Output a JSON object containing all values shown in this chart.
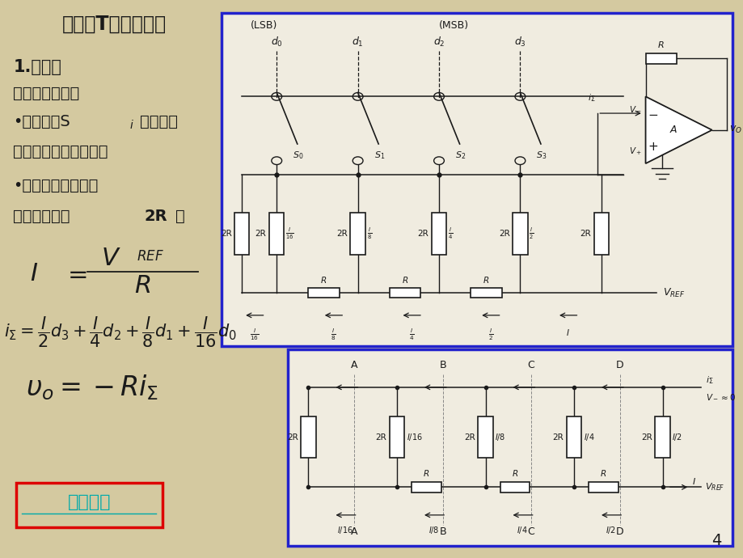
{
  "bg_color": "#d4c9a0",
  "circuit_bg": "#f0ece0",
  "title_text": "二、倒T型电阔网络",
  "text_color": "#1a1a1a",
  "blue_border": "#2222cc",
  "red_border": "#dd0000",
  "link_color": "#00aaaa",
  "page_number": "4",
  "line1": "1.原理：",
  "line2": "电阔网络特点：",
  "line3a": "•模拟开关S",
  "line3b": "i",
  "line3c": "不论接何",
  "line4": "位置，都相当于接地。",
  "line5": "•任意节点向左看的",
  "line6a": "等效电阔皊为",
  "line6b": "2R",
  "line6c": "。",
  "button_text": "公式推导"
}
